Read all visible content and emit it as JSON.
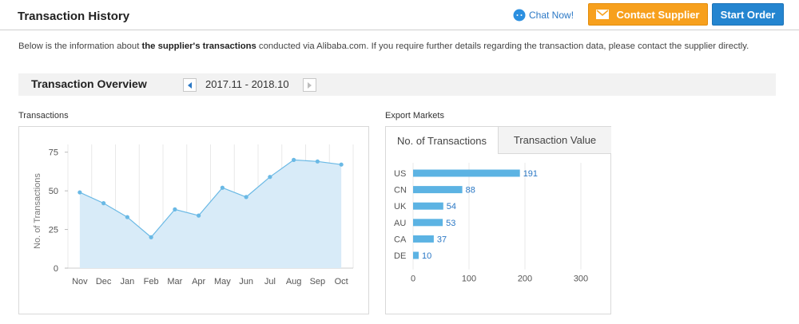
{
  "header": {
    "title": "Transaction History",
    "chat_label": "Chat Now!",
    "contact_label": "Contact Supplier",
    "start_order_label": "Start Order"
  },
  "intro": {
    "prefix": "Below is the information about ",
    "bold": "the supplier's transactions",
    "suffix": " conducted via Alibaba.com. If you require further details regarding the transaction data, please contact the supplier directly."
  },
  "overview": {
    "title": "Transaction Overview",
    "range": "2017.11 - 2018.10"
  },
  "transactions_section": {
    "label": "Transactions"
  },
  "export_section": {
    "label": "Export Markets",
    "tabs": [
      {
        "label": "No. of Transactions",
        "active": true
      },
      {
        "label": "Transaction Value",
        "active": false
      }
    ]
  },
  "colors": {
    "accent_blue": "#2485d0",
    "accent_orange": "#f7a01d",
    "line": "#6ab9e5",
    "area": "#d8ebf8",
    "bar": "#5cb3e3"
  },
  "chart_data": [
    {
      "type": "area",
      "title": "",
      "xlabel": "",
      "ylabel": "No. of Transactions",
      "categories": [
        "Nov",
        "Dec",
        "Jan",
        "Feb",
        "Mar",
        "Apr",
        "May",
        "Jun",
        "Jul",
        "Aug",
        "Sep",
        "Oct"
      ],
      "values": [
        49,
        42,
        33,
        20,
        38,
        34,
        52,
        46,
        59,
        70,
        69,
        67
      ],
      "ylim": [
        0,
        80
      ],
      "yticks": [
        0,
        25,
        50,
        75
      ],
      "grid": true
    },
    {
      "type": "bar",
      "orientation": "horizontal",
      "title": "",
      "categories": [
        "US",
        "CN",
        "UK",
        "AU",
        "CA",
        "DE"
      ],
      "values": [
        191,
        88,
        54,
        53,
        37,
        10
      ],
      "xlim": [
        0,
        300
      ],
      "xticks": [
        0,
        100,
        200,
        300
      ],
      "grid": true
    }
  ]
}
